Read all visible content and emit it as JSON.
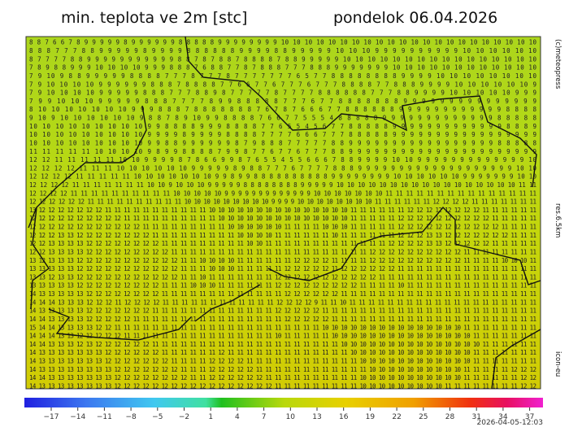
{
  "header": {
    "title": "min. teplota ve 2m [stc]",
    "date": "pondelok 06.04.2026"
  },
  "side_labels": {
    "copyright": "(c)meteopress",
    "resolution": "res.6.5km",
    "model": "icon-eu"
  },
  "timestamp": "2026-04-05-12:03",
  "grid": [
    "8 8 7 6 6 7 8 9 9 9 9 9 8 9 9 9 9 9 9 8 8 8 8 8 9 9 9 9 9 9 9 9 10 10 10 10 10 10 10 10 10 10 10 10 10 10 10 10 10 10 10 10 10 10",
    "8 8 8 7 7 7 8 8 9 9 9 9 9 8 9 9 9 9 8 8 8 8 8 8 9 9 9 9 8 8 9 9 9 9 9 10 10 10 9 9 9 9 9 9 9 9 9 9 10 10 10 10 10 10",
    "8 7 7 7 7 8 8 9 9 9 9 9 9 9 9 9 9 9 8 8 7 8 7 8 8 7 8 8 8 8 7 8 8 9 9 9 9 9 10 10 10 10 10 10 10 10 10 10 10 10 10 10 10 10",
    "7 8 9 8 8 9 9 9 10 10 10 10 9 9 9 8 8 8 7 6 8 8 7 7 8 7 8 8 8 7 7 7 8 8 8 9 9 9 9 9 9 9 10 10 10 10 10 10 10 10 10 10 10 10",
    "7 9 10 9 8 8 9 9 9 9 9 8 8 8 8 7 7 7 8 7 7 7 8 7 7 7 7 7 7 7 6 5 7 7 8 8 8 8 8 8 8 8 9 9 9 9 10 10 10 10 10 10 10 10",
    "7 9 10 10 10 10 9 9 9 9 9 9 8 8 8 7 8 8 8 8 7 7 6 6 7 7 6 7 7 7 6 7 7 7 8 8 8 8 7 7 8 8 8 9 9 9 9 10 10 10 10 10 10 9",
    "7 9 10 10 10 10 9 9 9 9 9 8 8 8 7 7 7 8 8 9 8 7 7 7 7 7 8 7 7 7 7 8 8 8 8 8 8 7 7 7 8 8 9 9 9 9 10 10 10 10 10 9 9 9",
    "7 9 9 10 10 10 9 9 9 9 9 8 8 8 7 7 7 7 8 9 9 8 8 8 8 8 7 7 7 6 7 7 8 8 8 8 8 8 8 9 9 9 9 9 9 9 9 9 9 9 9 9 9 9",
    "8 10 10 10 10 10 10 10 9 9 9 8 8 8 7 8 8 8 8 8 8 8 7 6 7 8 7 6 6 6 7 7 8 8 8 8 8 8 9 9 9 9 9 9 9 9 9 9 9 9 8 8 8 8",
    "9 10 9 10 10 10 10 10 10 9 8 8 7 8 9 10 9 9 8 8 8 8 7 6 6 7 7 5 5 5 4 8 8 8 8 8 9 9 9 9 9 9 9 9 9 9 9 9 9 8 8 8 8 8",
    "10 10 10 10 10 10 10 10 10 9 9 8 8 8 8 9 9 9 8 8 8 8 7 7 6 5 5 4 5 6 7 7 8 8 8 8 8 9 9 9 9 9 9 9 9 9 9 9 9 9 8 8 8 9",
    "10 10 10 10 10 10 10 10 10 9 9 9 9 8 9 9 9 9 8 8 8 8 7 7 7 7 6 6 6 7 7 7 8 8 8 8 8 9 9 9 9 9 9 9 9 9 9 9 9 9 9 9 9 9",
    "10 10 10 10 10 10 10 10 10 9 9 8 8 9 9 9 9 9 9 8 7 9 8 8 8 7 7 7 7 7 8 8 9 9 9 9 9 9 9 9 9 9 9 9 9 9 9 9 9 8 8 8 8 8",
    "11 11 11 11 11 10 10 10 10 9 8 9 9 8 8 8 8 7 9 9 8 7 7 6 7 7 6 7 7 7 8 8 9 9 9 9 9 9 9 9 9 9 9 9 9 9 9 9 9 9 9 9 9 9",
    "12 12 11 11 11 11 11 10 10 9 9 9 9 8 7 8 6 6 9 9 8 7 6 5 5 4 5 5 6 6 6 7 8 8 9 9 9 9 10 10 9 9 9 9 9 9 9 9 9 9 9 9 9 10",
    "12 12 12 12 11 11 11 10 10 10 10 10 10 9 9 9 9 9 8 9 8 8 7 7 7 6 7 7 7 7 8 8 8 9 9 9 9 9 9 9 9 9 9 9 9 9 9 9 9 9 9 9 10 10",
    "12 12 12 12 11 11 11 11 11 10 10 10 10 10 10 10 9 9 8 9 9 8 8 8 8 8 8 8 8 8 8 9 9 9 9 9 9 9 9 10 10 10 10 10 10 9 9 9 9 9 9 9 10 10",
    "12 12 12 12 11 11 11 11 11 11 11 10 10 9 10 10 10 9 9 9 9 9 8 8 8 8 8 8 8 8 9 9 9 9 9 10 10 10 10 10 10 10 10 10 10 10 10 10 10 10 10 10 11 11",
    "12 12 12 12 11 11 11 11 11 11 11 11 11 11 10 10 10 10 10 9 9 9 9 9 9 9 9 9 9 9 9 9 10 10 10 10 10 10 10 11 11 11 11 11 11 11 11 11 11 11 11 11 11 11",
    "12 12 12 12 12 12 11 11 11 11 11 11 11 11 11 11 10 10 10 10 10 10 10 10 10 9 9 9 9 10 10 10 10 10 10 10 10 11 11 11 11 11 11 12 12 12 12 11 11 11 11 11 11 11",
    "13 12 12 12 12 12 12 12 11 11 11 11 11 11 11 11 11 11 11 10 10 10 10 10 10 10 10 10 10 10 10 10 10 10 11 11 11 11 11 11 12 12 12 12 12 12 12 12 11 11 11 11 11 11",
    "12 12 12 12 12 12 12 12 12 12 11 11 11 11 11 11 11 11 11 11 10 10 10 10 10 10 10 10 10 10 10 10 10 10 11 11 11 11 11 12 12 12 12 12 12 12 12 12 12 11 11 11 11 11",
    "12 12 12 12 12 12 12 12 12 12 12 12 11 11 11 11 11 11 11 11 11 10 10 10 10 10 10 11 11 11 11 10 10 10 11 11 11 11 11 12 12 12 12 12 12 12 12 12 12 12 11 11 11 11",
    "12 12 12 13 13 12 12 12 12 12 12 12 12 11 11 11 11 11 11 11 11 11 10 10 10 10 11 11 11 11 11 11 10 11 11 11 11 11 11 12 12 12 13 13 12 12 12 12 12 12 12 11 11 11",
    "12 12 13 13 13 13 12 12 12 12 12 12 12 12 11 11 11 11 11 11 11 11 11 10 10 11 11 11 11 11 11 11 11 11 11 11 11 11 12 12 12 12 13 13 12 12 12 12 12 11 11 11 11 11",
    "12 12 13 13 13 13 12 12 12 12 12 12 12 12 12 11 11 11 11 11 11 11 11 11 11 11 11 11 11 11 11 11 11 11 11 11 12 12 12 12 12 12 12 12 12 12 11 11 11 11 11 11 11 11",
    "13 12 13 13 13 12 12 12 12 12 12 12 12 12 12 12 11 11 10 10 10 10 11 11 11 11 11 11 12 12 12 12 11 11 11 11 12 12 12 12 12 12 12 12 12 12 11 11 11 11 10 10 10 11",
    "13 13 13 13 13 12 12 12 12 12 12 12 12 12 12 12 11 11 11 10 10 10 11 11 11 11 11 12 12 12 12 12 11 12 12 12 12 12 12 11 11 11 11 11 11 11 11 11 11 11 11 11 11 11",
    "13 13 12 13 13 12 12 12 12 12 12 12 12 12 12 12 11 11 10 11 11 11 11 11 11 11 12 12 12 12 12 12 12 12 12 12 12 11 11 11 11 11 11 11 11 11 11 11 11 11 11 11 11 11",
    "13 13 13 13 13 12 12 12 12 12 12 12 12 12 11 11 11 10 10 10 11 11 11 11 11 11 12 12 12 12 12 12 12 12 12 11 11 11 11 10 11 11 11 11 11 11 11 11 11 11 11 11 11 11",
    "14 13 13 13 13 13 12 12 12 12 12 12 12 12 11 11 11 11 11 11 11 11 11 11 11 11 11 12 12 12 12 12 12 11 11 11 11 11 11 11 11 11 11 11 11 11 11 11 11 11 11 11 11 11",
    "14 14 14 13 13 13 12 12 12 11 12 12 12 12 11 11 11 11 11 11 11 11 11 11 11 11 12 12 12 12 9 11 11 10 11 11 11 11 11 11 11 11 11 11 11 11 11 11 11 11 11 11 11 11",
    "14 13 13 13 13 13 12 12 12 12 12 12 12 11 11 11 11 11 11 11 11 11 11 11 11 11 12 12 12 12 12 11 11 11 11 11 11 11 11 11 11 11 11 11 11 11 11 11 11 11 11 11 11 11",
    "14 14 13 13 13 13 12 12 12 12 12 11 11 11 11 11 11 11 11 11 11 11 11 11 11 11 11 12 12 12 12 12 11 11 11 11 11 11 11 11 11 11 11 11 11 11 11 11 11 11 11 11 11 11",
    "15 14 14 13 13 13 13 12 12 11 11 11 11 11 11 11 11 11 11 11 11 11 11 11 11 11 11 11 11 11 11 10 10 10 10 10 10 10 10 10 10 10 10 10 10 10 11 11 11 11 11 11 11 11",
    "14 14 14 13 13 12 12 12 12 12 11 11 11 11 11 11 11 11 11 11 11 11 11 11 11 11 10 11 11 11 11 11 10 10 10 10 10 10 10 10 10 10 10 10 10 10 10 11 11 11 11 11 11 11",
    "14 14 13 13 13 12 13 12 12 12 12 12 12 11 11 11 11 11 11 11 11 11 11 11 11 11 11 11 11 11 11 11 11 10 10 10 10 10 10 10 10 10 10 10 10 10 10 10 11 11 11 11 11 11",
    "14 13 13 13 13 13 13 13 12 12 12 12 12 12 11 11 11 11 11 11 12 11 11 11 11 11 11 11 11 11 11 11 11 11 10 10 10 10 10 10 10 10 10 10 10 10 10 11 11 11 11 11 11 11",
    "14 13 13 13 13 13 13 13 12 12 12 12 12 12 12 11 11 11 11 12 12 12 12 11 11 11 11 11 11 11 11 11 11 11 11 10 10 10 10 10 10 10 10 10 10 10 10 11 11 11 11 11 11 11",
    "14 13 13 13 13 13 13 13 13 12 12 12 12 12 12 12 11 11 11 12 12 12 12 12 11 11 11 11 11 11 11 11 11 11 11 11 10 10 10 10 10 10 10 10 10 10 11 11 11 11 11 12 12 12",
    "14 14 13 13 13 13 13 13 13 12 12 12 12 12 12 12 12 11 11 12 12 12 12 12 12 11 11 11 11 11 11 11 11 11 11 10 10 10 10 10 10 10 10 10 10 10 11 11 11 11 11 11 12 12",
    "14 13 13 13 13 13 13 13 13 12 12 12 12 12 12 12 12 12 12 12 12 12 12 12 12 12 11 11 11 11 11 11 11 11 11 10 10 10 10 10 10 10 10 10 11 11 11 11 11 11 11 11 12 12"
  ],
  "colorbar": {
    "ticks": [
      "−17",
      "−14",
      "−11",
      "−8",
      "−5",
      "−2",
      "1",
      "4",
      "7",
      "10",
      "13",
      "16",
      "19",
      "22",
      "25",
      "28",
      "31",
      "34",
      "37"
    ]
  }
}
